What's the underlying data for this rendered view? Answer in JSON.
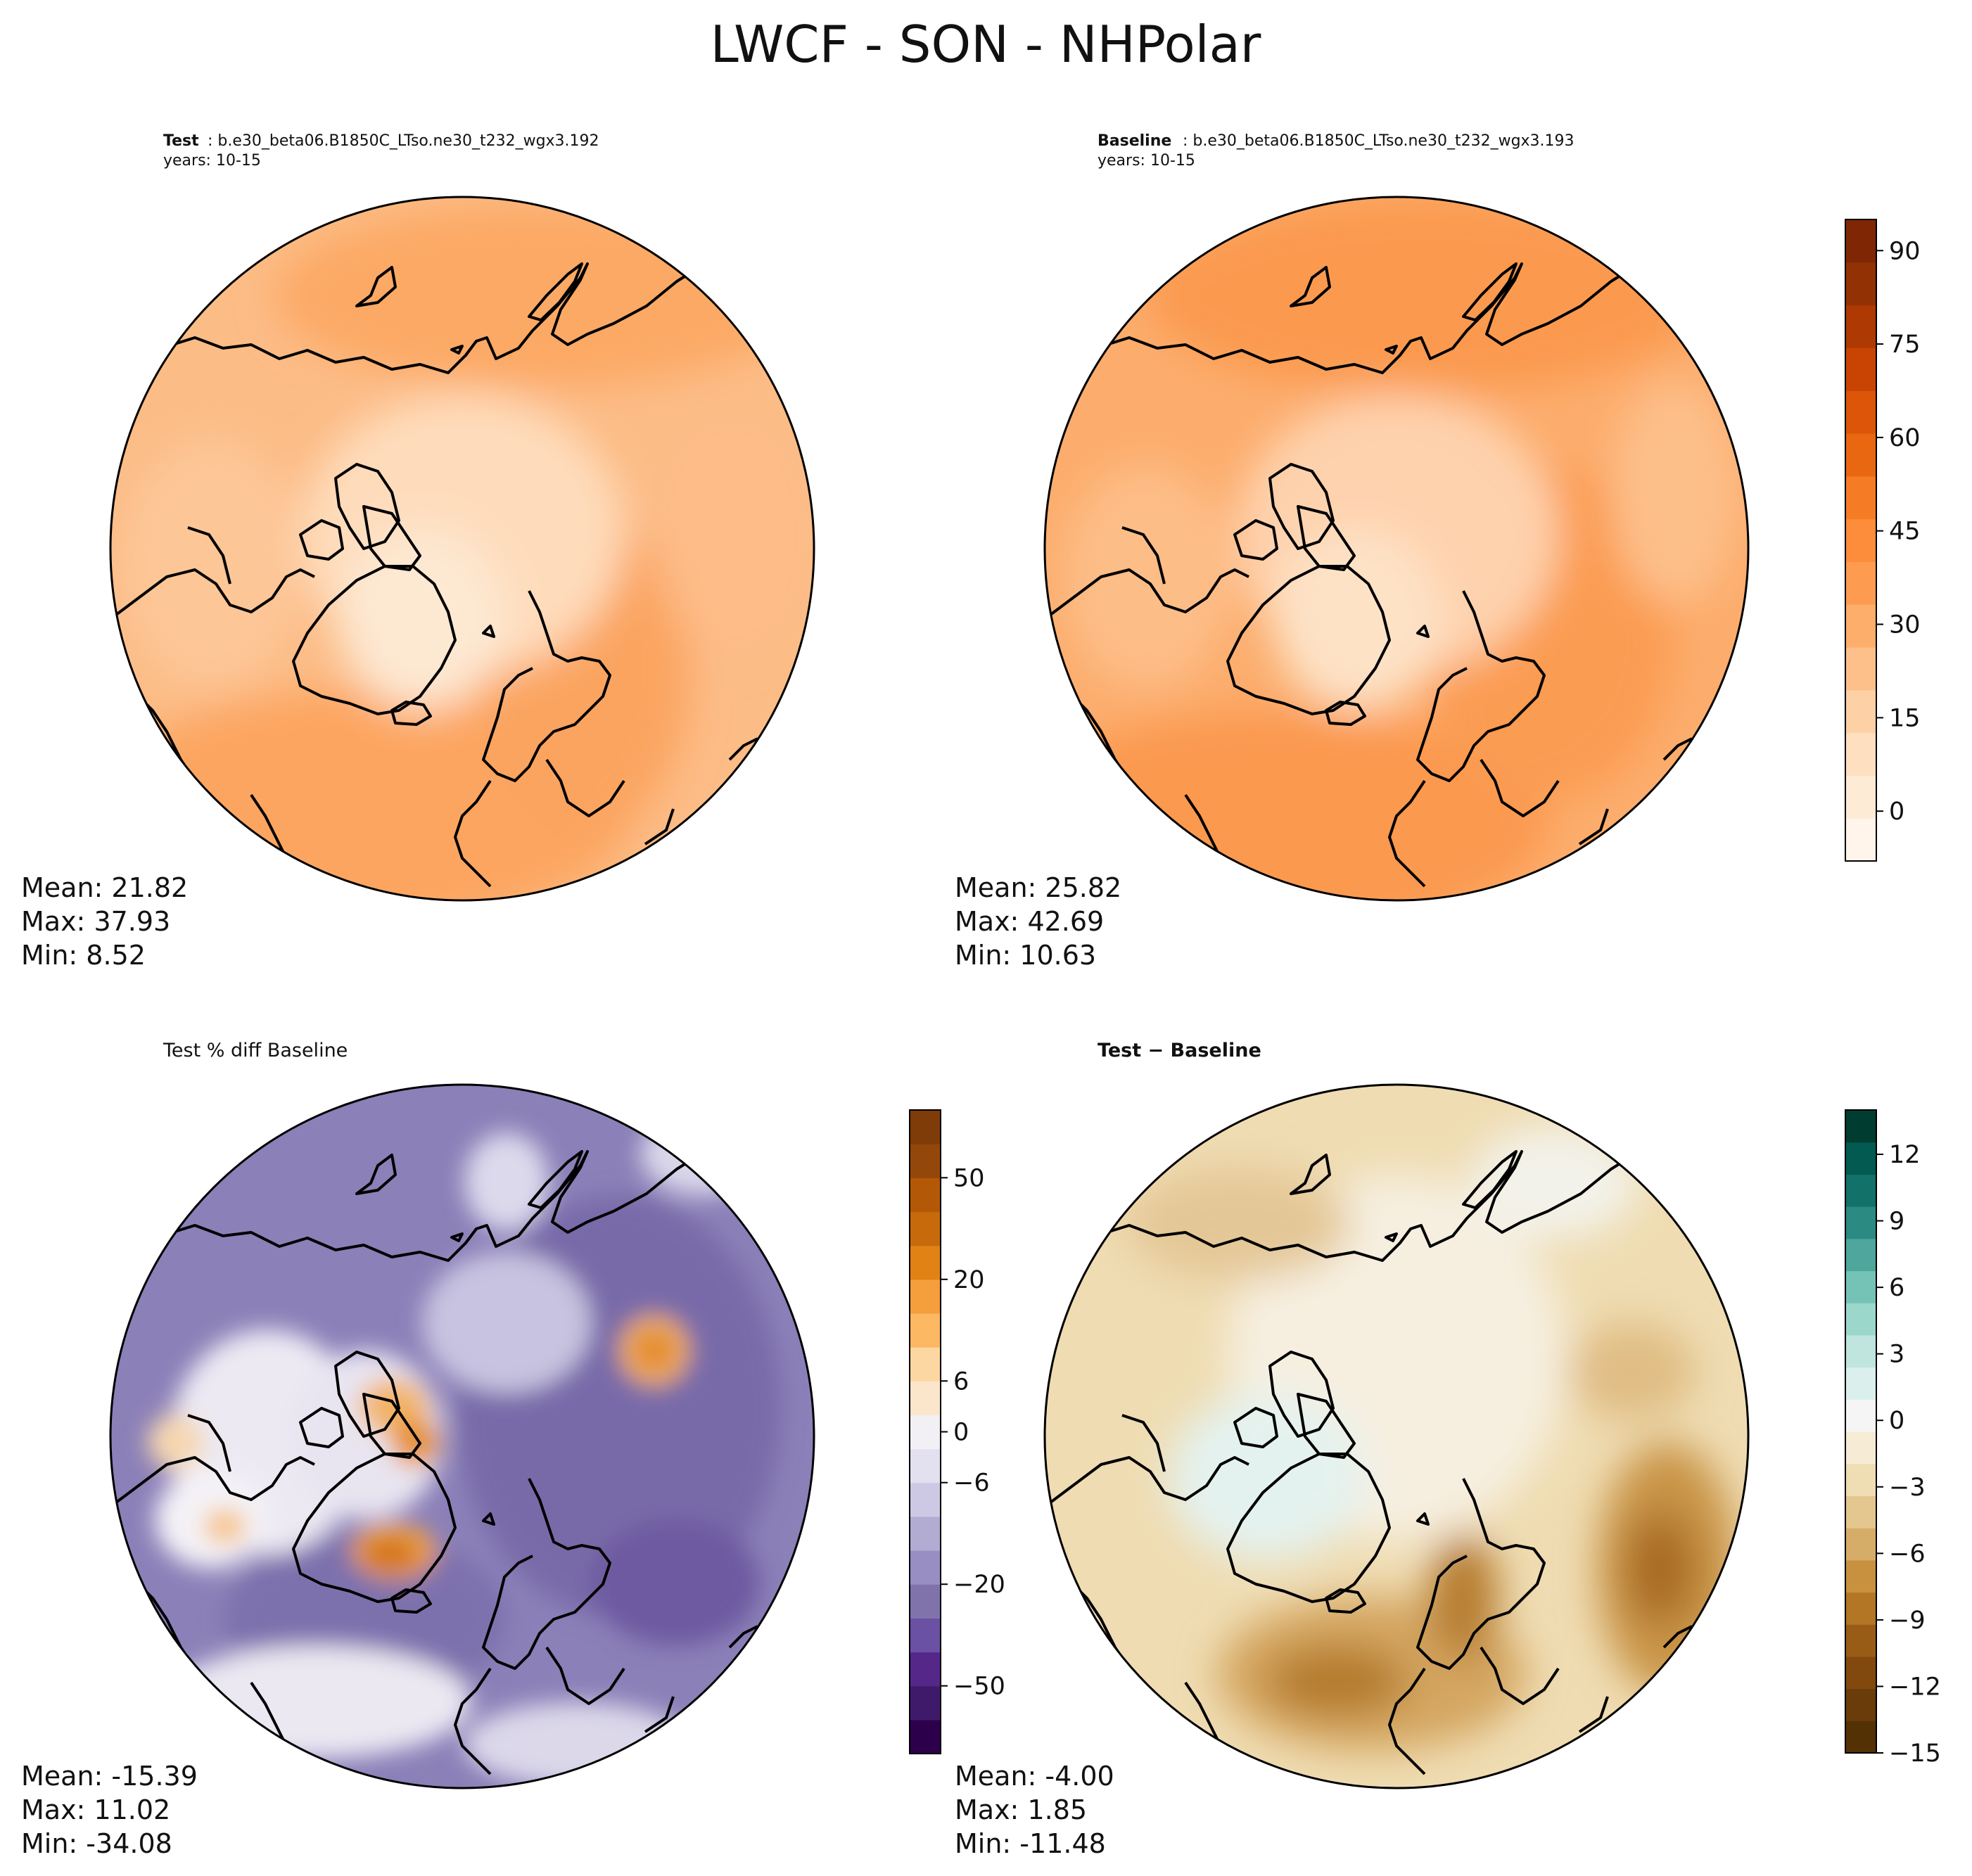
{
  "title": "LWCF - SON - NHPolar",
  "chart_data": [
    {
      "type": "heatmap",
      "projection": "north-polar-stereographic",
      "label_bold": "Test",
      "label_rest": " : b.e30_beta06.B1850C_LTso.ne30_t232_wgx3.192",
      "years": "years: 10-15",
      "stats": {
        "mean": "Mean: 21.82",
        "max": "Max: 37.93",
        "min": "Min:  8.52"
      },
      "field_range": [
        8.52,
        37.93
      ],
      "colormap": "Oranges",
      "shared_colorbar_with_next": true
    },
    {
      "type": "heatmap",
      "projection": "north-polar-stereographic",
      "label_bold": "Baseline",
      "label_rest": " : b.e30_beta06.B1850C_LTso.ne30_t232_wgx3.193",
      "years": "years: 10-15",
      "stats": {
        "mean": "Mean: 25.82",
        "max": "Max: 42.69",
        "min": "Min: 10.63"
      },
      "field_range": [
        10.63,
        42.69
      ],
      "colormap": "Oranges",
      "colorbar": {
        "ticks": [
          "90",
          "75",
          "60",
          "45",
          "30",
          "15",
          "0"
        ],
        "tick_values": [
          90,
          75,
          60,
          45,
          30,
          15,
          0
        ],
        "range": [
          -8,
          95
        ],
        "colors": [
          "#fff5eb",
          "#feebd6",
          "#fee0c1",
          "#fdd1a5",
          "#fdc08b",
          "#fdae6b",
          "#fd9c51",
          "#fd8c3b",
          "#f57b25",
          "#ea6712",
          "#dc5508",
          "#c94402",
          "#ae3903",
          "#923204",
          "#7f2704"
        ]
      }
    },
    {
      "type": "heatmap",
      "projection": "north-polar-stereographic",
      "label": "Test % diff Baseline",
      "stats": {
        "mean": "Mean: -15.39",
        "max": "Max: 11.02",
        "min": "Min: -34.08"
      },
      "field_range": [
        -34.08,
        11.02
      ],
      "colormap": "PuOr_r",
      "colorbar": {
        "ticks": [
          "50",
          "20",
          "6",
          "0",
          "−6",
          "−20",
          "−50"
        ],
        "colors": [
          "#2d004b",
          "#3f1a6b",
          "#542788",
          "#6a51a3",
          "#8073ac",
          "#998ec3",
          "#b2abd2",
          "#cdc9e4",
          "#e3e1ef",
          "#f2f0f5",
          "#fbe6cb",
          "#fdd7a1",
          "#fdb863",
          "#f59e3c",
          "#e08214",
          "#c66a0b",
          "#b35806",
          "#93470a",
          "#7f3b08"
        ]
      }
    },
    {
      "type": "heatmap",
      "projection": "north-polar-stereographic",
      "label": "Test − Baseline",
      "stats": {
        "mean": "Mean: -4.00",
        "max": "Max:  1.85",
        "min": "Min: -11.48"
      },
      "field_range": [
        -11.48,
        1.85
      ],
      "colormap": "BrBG",
      "colorbar": {
        "ticks": [
          "12",
          "9",
          "6",
          "3",
          "0",
          "−3",
          "−6",
          "−9",
          "−12",
          "−15"
        ],
        "tick_values": [
          12,
          9,
          6,
          3,
          0,
          -3,
          -6,
          -9,
          -12,
          -15
        ],
        "range": [
          -15,
          14
        ],
        "colors": [
          "#543005",
          "#6a3c09",
          "#81490d",
          "#985c16",
          "#b27625",
          "#c8913f",
          "#d6ad68",
          "#e3c78f",
          "#efddb3",
          "#f6ecd6",
          "#f5f5f5",
          "#dbf0ed",
          "#bfe5de",
          "#9cd7cc",
          "#75c3b6",
          "#4ea69d",
          "#2b8a82",
          "#127169",
          "#025a50",
          "#003c30"
        ]
      }
    }
  ]
}
